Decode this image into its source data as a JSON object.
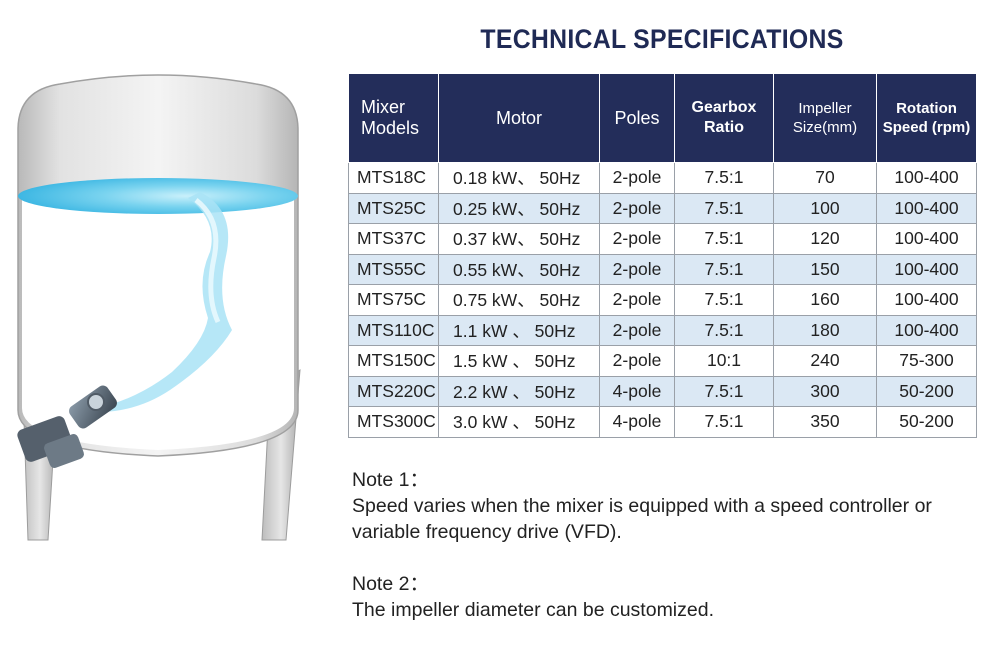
{
  "title": "TECHNICAL SPECIFICATIONS",
  "illustration": {
    "name": "mixing-tank-illustration",
    "tank_color": "#d6d6d6",
    "liquid_color": "#5ac8ea"
  },
  "table": {
    "headers": {
      "model": "Mixer Models",
      "motor": "Motor",
      "poles": "Poles",
      "ratio": "Gearbox Ratio",
      "impeller": "Impeller Size(mm)",
      "speed": "Rotation Speed (rpm)"
    },
    "rows": [
      {
        "model": "MTS18C",
        "motor": "0.18 kW、 50Hz",
        "poles": "2-pole",
        "ratio": "7.5:1",
        "impeller": "70",
        "speed": "100-400"
      },
      {
        "model": "MTS25C",
        "motor": "0.25 kW、 50Hz",
        "poles": "2-pole",
        "ratio": "7.5:1",
        "impeller": "100",
        "speed": "100-400"
      },
      {
        "model": "MTS37C",
        "motor": "0.37 kW、 50Hz",
        "poles": "2-pole",
        "ratio": "7.5:1",
        "impeller": "120",
        "speed": "100-400"
      },
      {
        "model": "MTS55C",
        "motor": "0.55 kW、 50Hz",
        "poles": "2-pole",
        "ratio": "7.5:1",
        "impeller": "150",
        "speed": "100-400"
      },
      {
        "model": "MTS75C",
        "motor": "0.75 kW、 50Hz",
        "poles": "2-pole",
        "ratio": "7.5:1",
        "impeller": "160",
        "speed": "100-400"
      },
      {
        "model": "MTS110C",
        "motor": "1.1 kW 、 50Hz",
        "poles": "2-pole",
        "ratio": "7.5:1",
        "impeller": "180",
        "speed": "100-400"
      },
      {
        "model": "MTS150C",
        "motor": "1.5 kW 、 50Hz",
        "poles": "2-pole",
        "ratio": "10:1",
        "impeller": "240",
        "speed": "75-300"
      },
      {
        "model": "MTS220C",
        "motor": "2.2 kW 、 50Hz",
        "poles": "4-pole",
        "ratio": "7.5:1",
        "impeller": "300",
        "speed": "50-200"
      },
      {
        "model": "MTS300C",
        "motor": "3.0 kW 、 50Hz",
        "poles": "4-pole",
        "ratio": "7.5:1",
        "impeller": "350",
        "speed": "50-200"
      }
    ]
  },
  "notes": {
    "note1_title": "Note 1：",
    "note1_text": "Speed varies when the mixer is equipped with a speed controller or variable frequency drive (VFD).",
    "note2_title": "Note 2：",
    "note2_text": "The impeller diameter can be customized."
  }
}
